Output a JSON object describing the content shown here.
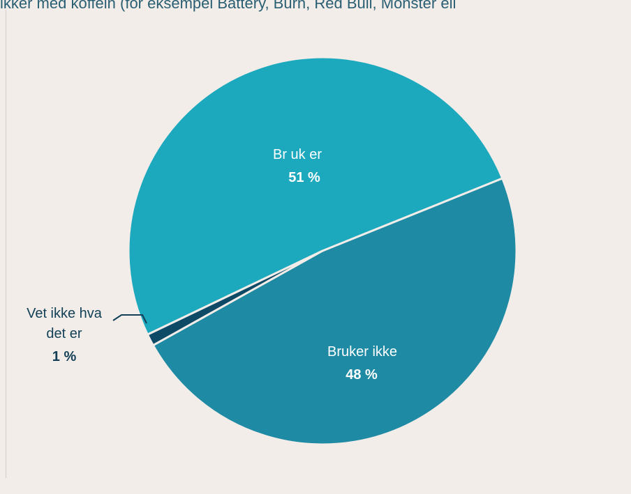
{
  "title": "ikker med koffein (for eksempel Battery, Burn, Red Bull, Monster ell",
  "colors": {
    "background": "#f2ede9",
    "title": "#2a5f73",
    "divider": "#f2ede9"
  },
  "chart_data": {
    "type": "pie",
    "title": "ikker med koffein (for eksempel Battery, Burn, Red Bull, Monster ell",
    "start_angle_deg": 22,
    "slices": [
      {
        "label": "Bruker ikke",
        "value": 48,
        "value_label": "48 %",
        "color": "#1f8aa4",
        "label_color": "#ffffff"
      },
      {
        "label": "Vet ikke hva det er",
        "label_line1": "Vet ikke hva",
        "label_line2": "det er",
        "value": 1,
        "value_label": "1 %",
        "color": "#0e4a66",
        "label_color": "#123f56"
      },
      {
        "label": "Br uk er",
        "value": 51,
        "value_label": "51 %",
        "color": "#1ca8bd",
        "label_color": "#ffffff"
      }
    ]
  }
}
